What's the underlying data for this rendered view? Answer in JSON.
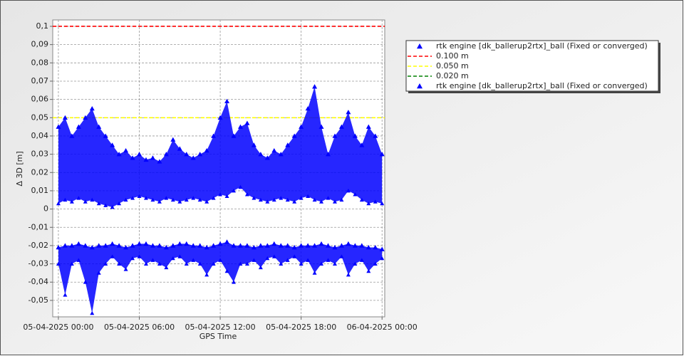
{
  "chart_data": {
    "type": "scatter",
    "x_label": "GPS Time",
    "y_label": "Δ 3D [m]",
    "xlim": [
      -0.42,
      24.2
    ],
    "ylim": [
      -0.059,
      0.1035
    ],
    "xticks": [
      {
        "value": 0,
        "label": "05-04-2025 00:00"
      },
      {
        "value": 6,
        "label": "05-04-2025 06:00"
      },
      {
        "value": 12,
        "label": "05-04-2025 12:00"
      },
      {
        "value": 18,
        "label": "05-04-2025 18:00"
      },
      {
        "value": 24,
        "label": "06-04-2025 00:00"
      }
    ],
    "yticks": [
      {
        "value": 0.1,
        "label": "0,1"
      },
      {
        "value": 0.09,
        "label": "0,09"
      },
      {
        "value": 0.08,
        "label": "0,08"
      },
      {
        "value": 0.07,
        "label": "0,07"
      },
      {
        "value": 0.06,
        "label": "0,06"
      },
      {
        "value": 0.05,
        "label": "0,05"
      },
      {
        "value": 0.04,
        "label": "0,04"
      },
      {
        "value": 0.03,
        "label": "0,03"
      },
      {
        "value": 0.02,
        "label": "0,02"
      },
      {
        "value": 0.01,
        "label": "0,01"
      },
      0,
      {
        "value": -0.01,
        "label": "-0,01"
      },
      {
        "value": -0.02,
        "label": "-0,02"
      },
      {
        "value": -0.03,
        "label": "-0,03"
      },
      {
        "value": -0.04,
        "label": "-0,04"
      },
      {
        "value": -0.05,
        "label": "-0,05"
      }
    ],
    "grid": true,
    "reference_lines": [
      {
        "name": "0.100 m",
        "value": 0.1,
        "color": "#ff0000"
      },
      {
        "name": "0.050 m",
        "value": 0.05,
        "color": "#ffff00"
      },
      {
        "name": "0.020 m",
        "value": 0.02,
        "color": "#008000"
      }
    ],
    "series": [
      {
        "name": "rtk engine [dk_ballerup2rtx]_ball (Fixed or converged)",
        "color": "#0000ff",
        "x": [
          0,
          0.5,
          1,
          1.5,
          2,
          2.5,
          3,
          3.5,
          4,
          4.5,
          5,
          5.5,
          6,
          6.5,
          7,
          7.5,
          8,
          8.5,
          9,
          9.5,
          10,
          10.5,
          11,
          11.5,
          12,
          12.5,
          13,
          13.5,
          14,
          14.5,
          15,
          15.5,
          16,
          16.5,
          17,
          17.5,
          18,
          18.5,
          19,
          19.5,
          20,
          20.5,
          21,
          21.5,
          22,
          22.5,
          23,
          23.5,
          24
        ],
        "values": [
          0.045,
          0.05,
          0.04,
          0.045,
          0.05,
          0.055,
          0.045,
          0.04,
          0.035,
          0.03,
          0.032,
          0.028,
          0.03,
          0.027,
          0.028,
          0.026,
          0.03,
          0.038,
          0.033,
          0.03,
          0.028,
          0.03,
          0.032,
          0.04,
          0.05,
          0.059,
          0.04,
          0.045,
          0.047,
          0.035,
          0.03,
          0.028,
          0.032,
          0.03,
          0.035,
          0.04,
          0.045,
          0.055,
          0.067,
          0.045,
          0.03,
          0.04,
          0.045,
          0.053,
          0.04,
          0.035,
          0.045,
          0.04,
          0.03
        ],
        "low": [
          0.003,
          0.005,
          0.004,
          0.006,
          0.004,
          0.005,
          0.003,
          0.002,
          0.001,
          0.003,
          0.005,
          0.006,
          0.007,
          0.006,
          0.005,
          0.004,
          0.006,
          0.005,
          0.004,
          0.005,
          0.006,
          0.005,
          0.004,
          0.006,
          0.008,
          0.007,
          0.01,
          0.012,
          0.008,
          0.006,
          0.005,
          0.004,
          0.005,
          0.006,
          0.005,
          0.004,
          0.006,
          0.007,
          0.005,
          0.004,
          0.006,
          0.004,
          0.005,
          0.01,
          0.008,
          0.005,
          0.003,
          0.004,
          0.003
        ]
      },
      {
        "name": "rtk engine [dk_ballerup2rtx]_ball (Fixed or converged)",
        "color": "#0000ff",
        "x": [
          0,
          0.5,
          1,
          1.5,
          2,
          2.5,
          3,
          3.5,
          4,
          4.5,
          5,
          5.5,
          6,
          6.5,
          7,
          7.5,
          8,
          8.5,
          9,
          9.5,
          10,
          10.5,
          11,
          11.5,
          12,
          12.5,
          13,
          13.5,
          14,
          14.5,
          15,
          15.5,
          16,
          16.5,
          17,
          17.5,
          18,
          18.5,
          19,
          19.5,
          20,
          20.5,
          21,
          21.5,
          22,
          22.5,
          23,
          23.5,
          24
        ],
        "values": [
          -0.021,
          -0.02,
          -0.02,
          -0.019,
          -0.02,
          -0.021,
          -0.02,
          -0.02,
          -0.019,
          -0.02,
          -0.021,
          -0.02,
          -0.019,
          -0.019,
          -0.02,
          -0.02,
          -0.021,
          -0.02,
          -0.019,
          -0.019,
          -0.02,
          -0.02,
          -0.021,
          -0.02,
          -0.019,
          -0.018,
          -0.02,
          -0.02,
          -0.02,
          -0.021,
          -0.02,
          -0.02,
          -0.019,
          -0.02,
          -0.02,
          -0.021,
          -0.02,
          -0.02,
          -0.02,
          -0.019,
          -0.02,
          -0.021,
          -0.02,
          -0.019,
          -0.02,
          -0.02,
          -0.021,
          -0.021,
          -0.022
        ],
        "low": [
          -0.03,
          -0.047,
          -0.03,
          -0.028,
          -0.04,
          -0.057,
          -0.035,
          -0.03,
          -0.026,
          -0.03,
          -0.033,
          -0.027,
          -0.026,
          -0.03,
          -0.028,
          -0.03,
          -0.032,
          -0.027,
          -0.026,
          -0.03,
          -0.028,
          -0.03,
          -0.036,
          -0.03,
          -0.028,
          -0.034,
          -0.04,
          -0.03,
          -0.03,
          -0.028,
          -0.032,
          -0.027,
          -0.026,
          -0.03,
          -0.028,
          -0.026,
          -0.03,
          -0.028,
          -0.035,
          -0.03,
          -0.028,
          -0.03,
          -0.026,
          -0.036,
          -0.03,
          -0.028,
          -0.034,
          -0.03,
          -0.027
        ]
      }
    ]
  }
}
